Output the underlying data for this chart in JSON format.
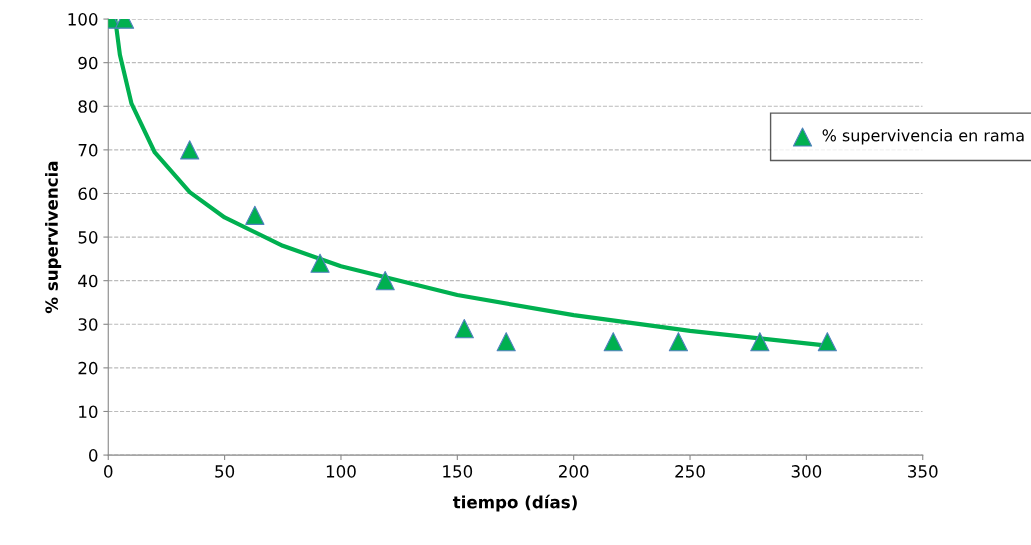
{
  "chart_data": {
    "type": "scatter",
    "xlabel": "tiempo (días)",
    "ylabel": "% supervivencia",
    "xlim": [
      0,
      350
    ],
    "xticks": [
      0,
      50,
      100,
      150,
      200,
      250,
      300,
      350
    ],
    "ylim": [
      0,
      100
    ],
    "yticks": [
      0,
      10,
      20,
      30,
      40,
      50,
      60,
      70,
      80,
      90,
      100
    ],
    "grid": "y",
    "legend": "right",
    "series": [
      {
        "name": "% supervivencia en rama",
        "marker": "triangle",
        "color": "#00b050",
        "x": [
          1,
          7,
          35,
          63,
          91,
          119,
          153,
          171,
          217,
          245,
          280,
          309
        ],
        "values": [
          100,
          100,
          70,
          55,
          44,
          40,
          29,
          26,
          26,
          26,
          26,
          26
        ]
      },
      {
        "type": "line",
        "color": "#00b050",
        "x": [
          3,
          5,
          10,
          20,
          35,
          50,
          75,
          100,
          150,
          200,
          250,
          309
        ],
        "values": [
          100,
          91.8,
          80.6,
          69.4,
          60.3,
          54.5,
          48,
          43.3,
          36.7,
          32.1,
          28.5,
          25.1
        ]
      }
    ]
  }
}
